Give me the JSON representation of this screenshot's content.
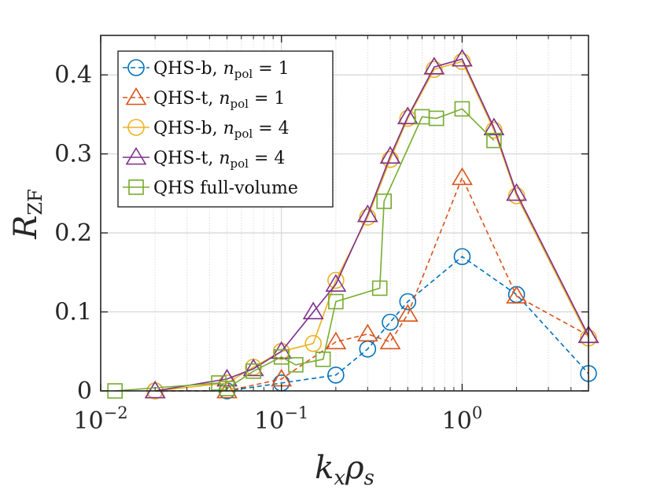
{
  "chart_data": {
    "type": "line",
    "x_scale": "log",
    "xlim": [
      0.01,
      5
    ],
    "ylim": [
      0,
      0.45
    ],
    "xlabel": "kxρs",
    "ylabel": "RZF",
    "grid": true,
    "legend_position": "top-left",
    "x_ticks": [
      {
        "value": 0.01,
        "base": "10",
        "exp": "−2"
      },
      {
        "value": 0.1,
        "base": "10",
        "exp": "−1"
      },
      {
        "value": 1,
        "base": "10",
        "exp": "0"
      }
    ],
    "y_ticks": [
      {
        "value": 0,
        "label": "0"
      },
      {
        "value": 0.1,
        "label": "0.1"
      },
      {
        "value": 0.2,
        "label": "0.2"
      },
      {
        "value": 0.3,
        "label": "0.3"
      },
      {
        "value": 0.4,
        "label": "0.4"
      }
    ],
    "series": [
      {
        "name": "QHS-b, npol = 1",
        "label_main": "QHS-b, ",
        "label_eq": " = 1",
        "color": "#0072BD",
        "marker": "circle",
        "dash": true,
        "x": [
          0.02,
          0.05,
          0.1,
          0.2,
          0.3,
          0.4,
          0.5,
          1,
          2,
          5
        ],
        "y": [
          0,
          0,
          0.01,
          0.02,
          0.053,
          0.087,
          0.113,
          0.17,
          0.122,
          0.022
        ]
      },
      {
        "name": "QHS-t, npol = 1",
        "label_main": "QHS-t, ",
        "label_eq": " = 1",
        "color": "#D95319",
        "marker": "triangle",
        "dash": true,
        "x": [
          0.02,
          0.05,
          0.1,
          0.2,
          0.3,
          0.4,
          0.5,
          1,
          2,
          5
        ],
        "y": [
          0,
          0,
          0.015,
          0.062,
          0.072,
          0.062,
          0.097,
          0.27,
          0.12,
          0.07
        ]
      },
      {
        "name": "QHS-b, npol = 4",
        "label_main": "QHS-b, ",
        "label_eq": " = 4",
        "color": "#EDB120",
        "marker": "circle",
        "dash": false,
        "x": [
          0.02,
          0.05,
          0.07,
          0.1,
          0.15,
          0.2,
          0.3,
          0.4,
          0.5,
          0.7,
          1,
          1.5,
          2,
          5
        ],
        "y": [
          0,
          0.01,
          0.03,
          0.05,
          0.06,
          0.14,
          0.22,
          0.293,
          0.345,
          0.407,
          0.417,
          0.33,
          0.247,
          0.067
        ]
      },
      {
        "name": "QHS-t, npol = 4",
        "label_main": "QHS-t, ",
        "label_eq": " = 4",
        "color": "#7E2F8E",
        "marker": "triangle",
        "dash": false,
        "x": [
          0.02,
          0.05,
          0.07,
          0.1,
          0.15,
          0.2,
          0.3,
          0.4,
          0.5,
          0.7,
          1,
          1.5,
          2,
          5
        ],
        "y": [
          0,
          0.015,
          0.028,
          0.05,
          0.1,
          0.135,
          0.223,
          0.297,
          0.347,
          0.41,
          0.42,
          0.333,
          0.25,
          0.07
        ]
      },
      {
        "name": "QHS full-volume",
        "label_main": "QHS full-volume",
        "label_eq": "",
        "color": "#77AC30",
        "marker": "square",
        "dash": false,
        "x": [
          0.012,
          0.045,
          0.05,
          0.07,
          0.1,
          0.12,
          0.17,
          0.2,
          0.35,
          0.37,
          0.6,
          0.72,
          1,
          1.5
        ],
        "y": [
          0,
          0.01,
          0.003,
          0.025,
          0.043,
          0.033,
          0.04,
          0.113,
          0.13,
          0.24,
          0.347,
          0.345,
          0.357,
          0.317
        ]
      }
    ]
  }
}
